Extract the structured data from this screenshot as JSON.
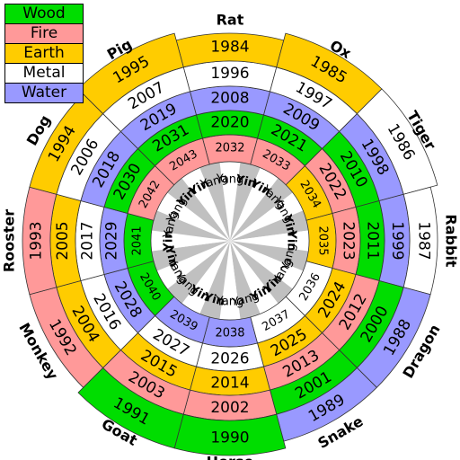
{
  "legend": {
    "items": [
      {
        "label": "Wood",
        "color": "#00dd00"
      },
      {
        "label": "Fire",
        "color": "#ff9999"
      },
      {
        "label": "Earth",
        "color": "#ffcc00"
      },
      {
        "label": "Metal",
        "color": "#ffffff"
      },
      {
        "label": "Water",
        "color": "#9999ff"
      }
    ]
  },
  "yin_yang": {
    "yang": "Yang",
    "yin": "Yin"
  },
  "wedge_colors": {
    "light": "#ffffff",
    "dark": "#c0c0c0"
  },
  "animals": [
    {
      "name": "Rat",
      "years": [
        "2032",
        "2020",
        "2008",
        "1996",
        "1984"
      ]
    },
    {
      "name": "Ox",
      "years": [
        "2033",
        "2021",
        "2009",
        "1997",
        "1985"
      ]
    },
    {
      "name": "Tiger",
      "years": [
        "2034",
        "2022",
        "2010",
        "1998",
        "1986"
      ]
    },
    {
      "name": "Rabbit",
      "years": [
        "2035",
        "2023",
        "2011",
        "1999",
        "1987"
      ]
    },
    {
      "name": "Dragon",
      "years": [
        "2036",
        "2024",
        "2012",
        "2000",
        "1988"
      ]
    },
    {
      "name": "Snake",
      "years": [
        "2037",
        "2025",
        "2013",
        "2001",
        "1989"
      ]
    },
    {
      "name": "Horse",
      "years": [
        "2038",
        "2026",
        "2014",
        "2002",
        "1990"
      ]
    },
    {
      "name": "Goat",
      "years": [
        "2039",
        "2027",
        "2015",
        "2003",
        "1991"
      ]
    },
    {
      "name": "Monkey",
      "years": [
        "2040",
        "2028",
        "2016",
        "2004",
        "1992"
      ]
    },
    {
      "name": "Rooster",
      "years": [
        "2041",
        "2029",
        "2017",
        "2005",
        "1993"
      ]
    },
    {
      "name": "Dog",
      "years": [
        "2042",
        "2030",
        "2018",
        "2006",
        "1994"
      ]
    },
    {
      "name": "Pig",
      "years": [
        "2043",
        "2031",
        "2019",
        "2007",
        "1995"
      ]
    }
  ]
}
